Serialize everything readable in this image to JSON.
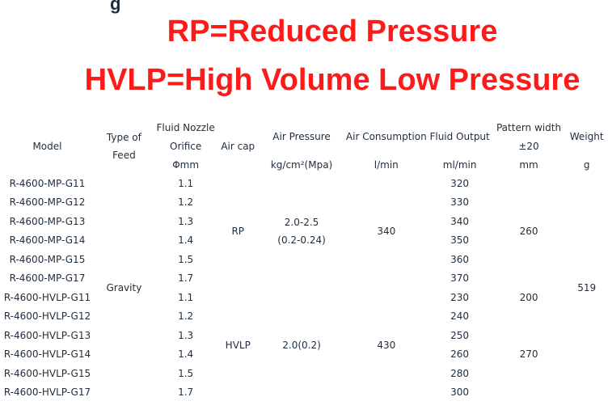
{
  "headline": {
    "line1": "RP=Reduced Pressure",
    "line2": "HVLP=High Volume Low Pressure"
  },
  "table": {
    "headers": {
      "model": "Model",
      "feed_1": "Type of",
      "feed_2": "Feed",
      "nozzle_1": "Fluid Nozzle",
      "nozzle_2": "Orifice",
      "nozzle_3": "Φmm",
      "aircap": "Air cap",
      "pressure_1": "Air Pressure",
      "pressure_2": "kg/cm²(Mpa)",
      "consumption_1": "Air Consumption",
      "consumption_2": "l/min",
      "output_1": "Fluid Output",
      "output_2": "ml/min",
      "pattern_1": "Pattern width",
      "pattern_2": "±20",
      "pattern_3": "mm",
      "weight_1": "Weight",
      "weight_2": "g"
    },
    "feed": "Gravity",
    "weight": "519",
    "rp": {
      "aircap": "RP",
      "pressure_1": "2.0-2.5",
      "pressure_2": "(0.2-0.24)",
      "consumption": "340",
      "pattern": "260"
    },
    "hvlp": {
      "aircap": "HVLP",
      "pressure": "2.0(0.2)",
      "consumption": "430",
      "pattern_top": "200",
      "pattern_bottom": "270"
    },
    "rows": [
      {
        "model": "R-4600-MP-G11",
        "orifice": "1.1",
        "output": "320"
      },
      {
        "model": "R-4600-MP-G12",
        "orifice": "1.2",
        "output": "330"
      },
      {
        "model": "R-4600-MP-G13",
        "orifice": "1.3",
        "output": "340"
      },
      {
        "model": "R-4600-MP-G14",
        "orifice": "1.4",
        "output": "350"
      },
      {
        "model": "R-4600-MP-G15",
        "orifice": "1.5",
        "output": "360"
      },
      {
        "model": "R-4600-MP-G17",
        "orifice": "1.7",
        "output": "370"
      },
      {
        "model": "R-4600-HVLP-G11",
        "orifice": "1.1",
        "output": "230"
      },
      {
        "model": "R-4600-HVLP-G12",
        "orifice": "1.2",
        "output": "240"
      },
      {
        "model": "R-4600-HVLP-G13",
        "orifice": "1.3",
        "output": "250"
      },
      {
        "model": "R-4600-HVLP-G14",
        "orifice": "1.4",
        "output": "260"
      },
      {
        "model": "R-4600-HVLP-G15",
        "orifice": "1.5",
        "output": "280"
      },
      {
        "model": "R-4600-HVLP-G17",
        "orifice": "1.7",
        "output": "300"
      }
    ]
  }
}
